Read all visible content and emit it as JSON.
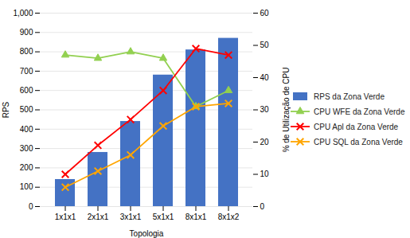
{
  "chart_data": {
    "type": "bar",
    "categories": [
      "1x1x1",
      "2x1x1",
      "3x1x1",
      "5x1x1",
      "8x1x1",
      "8x1x2"
    ],
    "xlabel": "Topologia",
    "ylabel": "RPS",
    "y2label": "% de Utilização de CPU",
    "ylim": [
      0,
      1000
    ],
    "yticks": [
      0,
      100,
      200,
      300,
      400,
      500,
      600,
      700,
      800,
      900,
      1000
    ],
    "y2lim": [
      0,
      60
    ],
    "y2ticks": [
      0,
      10,
      20,
      30,
      40,
      50,
      60
    ],
    "grid": true,
    "legend": "right",
    "series": [
      {
        "name": "RPS da Zona Verde",
        "type": "bar",
        "color": "#4472C4",
        "values": [
          140,
          280,
          440,
          680,
          810,
          870
        ]
      },
      {
        "name": "CPU WFE da Zona Verde",
        "type": "line",
        "axis": "y2",
        "color": "#92D050",
        "marker": "triangle",
        "values": [
          47,
          46,
          48,
          46,
          31,
          36
        ]
      },
      {
        "name": "CPU Apl da Zona Verde",
        "type": "line",
        "axis": "y2",
        "color": "#FF0000",
        "marker": "x",
        "values": [
          10,
          19,
          27,
          36,
          49,
          47
        ]
      },
      {
        "name": "CPU SQL da Zona Verde",
        "type": "line",
        "axis": "y2",
        "color": "#FFA500",
        "marker": "x",
        "values": [
          6,
          11,
          16,
          25,
          31,
          32
        ]
      }
    ]
  }
}
